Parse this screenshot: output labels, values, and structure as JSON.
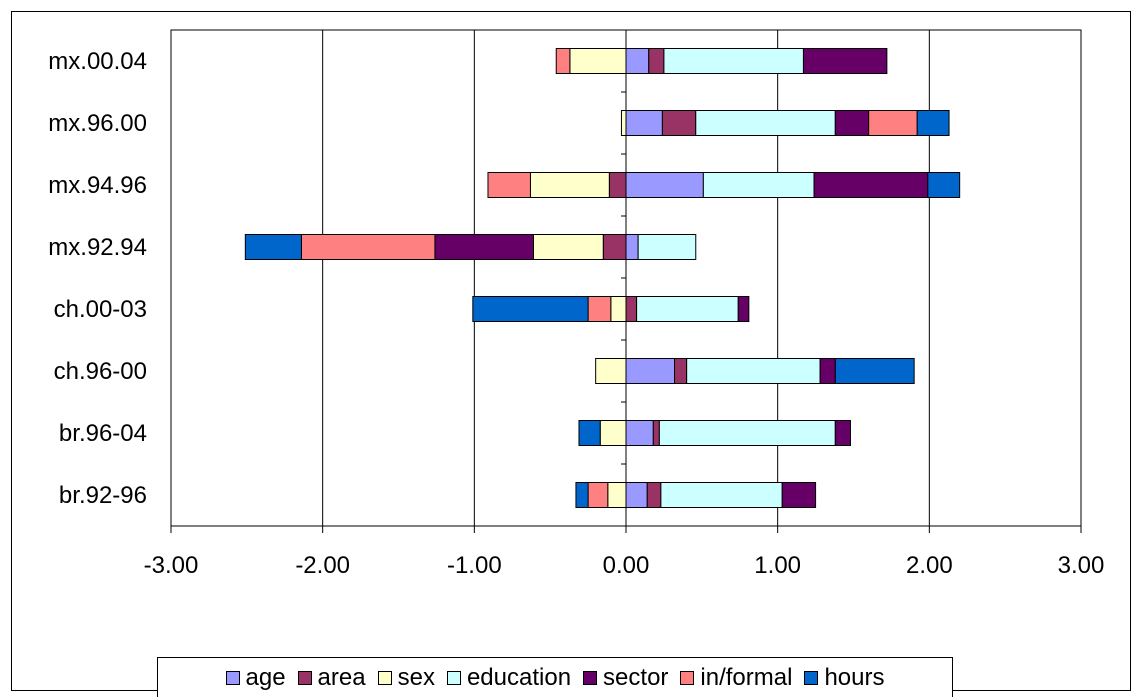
{
  "chart_data": {
    "type": "bar",
    "orientation": "horizontal",
    "stacked": true,
    "title": "",
    "xlabel": "",
    "ylabel": "",
    "xlim": [
      -3,
      3
    ],
    "x_ticks": [
      "-3.00",
      "-2.00",
      "-1.00",
      "0.00",
      "1.00",
      "2.00",
      "3.00"
    ],
    "x_tick_values": [
      -3,
      -2,
      -1,
      0,
      1,
      2,
      3
    ],
    "categories": [
      "mx.00.04",
      "mx.96.00",
      "mx.94.96",
      "mx.92.94",
      "ch.00-03",
      "ch.96-00",
      "br.96-04",
      "br.92-96"
    ],
    "grid": "vertical major gridlines",
    "legend_position": "bottom",
    "series": [
      {
        "name": "age",
        "color": "#9999ff",
        "values": [
          0.15,
          0.24,
          0.51,
          0.08,
          0.0,
          0.32,
          0.18,
          0.14
        ]
      },
      {
        "name": "area",
        "color": "#993366",
        "values": [
          0.1,
          0.22,
          -0.11,
          -0.15,
          0.07,
          0.08,
          0.04,
          0.09
        ]
      },
      {
        "name": "sex",
        "color": "#ffffcc",
        "values": [
          -0.37,
          -0.03,
          -0.52,
          -0.46,
          -0.1,
          -0.2,
          -0.17,
          -0.12
        ]
      },
      {
        "name": "education",
        "color": "#ccffff",
        "values": [
          0.92,
          0.92,
          0.73,
          0.38,
          0.67,
          0.88,
          1.16,
          0.8
        ]
      },
      {
        "name": "sector",
        "color": "#660066",
        "values": [
          0.55,
          0.22,
          0.75,
          -0.65,
          0.07,
          0.1,
          0.1,
          0.22
        ]
      },
      {
        "name": "in/formal",
        "color": "#ff8080",
        "values": [
          -0.09,
          0.32,
          -0.28,
          -0.88,
          -0.15,
          0.0,
          0.0,
          -0.13
        ]
      },
      {
        "name": "hours",
        "color": "#0066cc",
        "values": [
          0.0,
          0.21,
          0.21,
          -0.37,
          -0.76,
          0.52,
          -0.14,
          -0.08
        ]
      }
    ]
  }
}
